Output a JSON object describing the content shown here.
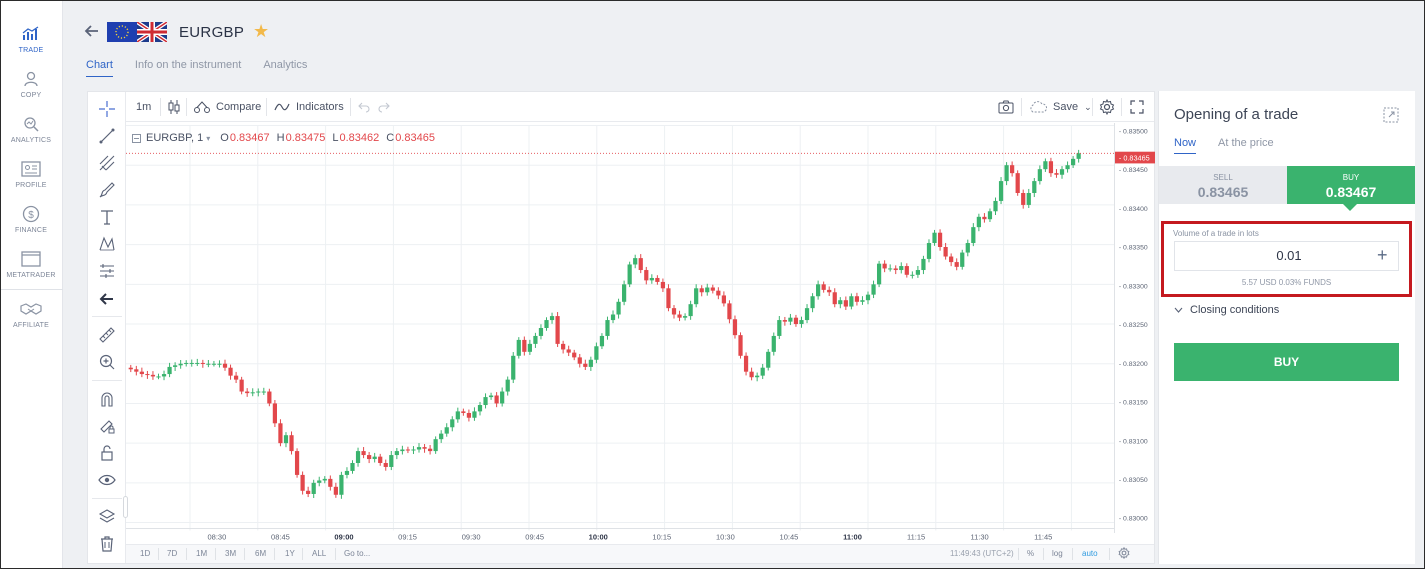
{
  "nav": {
    "items": [
      {
        "label": "TRADE",
        "icon": "trade-chart-icon",
        "active": true
      },
      {
        "label": "COPY",
        "icon": "copy-user-icon"
      },
      {
        "label": "ANALYTICS",
        "icon": "analytics-icon"
      },
      {
        "label": "PROFILE",
        "icon": "profile-card-icon"
      },
      {
        "label": "FINANCE",
        "icon": "dollar-icon"
      },
      {
        "label": "METATRADER",
        "icon": "window-icon"
      },
      {
        "label": "AFFILIATE",
        "icon": "handshake-icon"
      }
    ]
  },
  "header": {
    "symbol": "EURGBP",
    "tabs": [
      {
        "label": "Chart",
        "active": true
      },
      {
        "label": "Info on the instrument"
      },
      {
        "label": "Analytics"
      }
    ]
  },
  "toolbar": {
    "interval": "1m",
    "compare": "Compare",
    "indicators": "Indicators",
    "save": "Save"
  },
  "legend": {
    "symbol": "EURGBP, 1",
    "open_key": "O",
    "open": "0.83467",
    "high_key": "H",
    "high": "0.83475",
    "low_key": "L",
    "low": "0.83462",
    "close_key": "C",
    "close": "0.83465"
  },
  "chart_data": {
    "type": "candlestick",
    "y_ticks": [
      "0.83500",
      "0.83450",
      "0.83400",
      "0.83350",
      "0.83300",
      "0.83250",
      "0.83200",
      "0.83150",
      "0.83100",
      "0.83050",
      "0.83000"
    ],
    "x_ticks": [
      "08:30",
      "08:45",
      "09:00",
      "09:15",
      "09:30",
      "09:45",
      "10:00",
      "10:15",
      "10:30",
      "10:45",
      "11:00",
      "11:15",
      "11:30",
      "11:45"
    ],
    "bold_x_ticks": [
      "09:00",
      "10:00",
      "11:00"
    ],
    "ylim": [
      0.8299,
      0.835
    ],
    "last_price": "0.83465",
    "up_color": "#3ab36e",
    "down_color": "#e2474b",
    "closes": [
      0.83193,
      0.8319,
      0.83187,
      0.83186,
      0.83184,
      0.83184,
      0.83187,
      0.83196,
      0.83198,
      0.832,
      0.83201,
      0.83201,
      0.83201,
      0.832,
      0.832,
      0.832,
      0.832,
      0.83195,
      0.83185,
      0.8318,
      0.83165,
      0.83163,
      0.83164,
      0.83165,
      0.83165,
      0.8315,
      0.83125,
      0.831,
      0.8311,
      0.8309,
      0.8306,
      0.8304,
      0.83036,
      0.8305,
      0.83053,
      0.83055,
      0.83045,
      0.83035,
      0.8306,
      0.83065,
      0.83075,
      0.8309,
      0.83085,
      0.8308,
      0.83083,
      0.83075,
      0.8307,
      0.83085,
      0.8309,
      0.83092,
      0.83091,
      0.83092,
      0.83095,
      0.83093,
      0.8309,
      0.83105,
      0.83112,
      0.8312,
      0.8313,
      0.8314,
      0.83138,
      0.83132,
      0.8314,
      0.83148,
      0.83158,
      0.8316,
      0.8315,
      0.83165,
      0.8318,
      0.8321,
      0.8323,
      0.83215,
      0.83225,
      0.83235,
      0.83245,
      0.83255,
      0.8326,
      0.83225,
      0.83218,
      0.83214,
      0.83208,
      0.832,
      0.83196,
      0.83205,
      0.83222,
      0.83235,
      0.83255,
      0.83262,
      0.83278,
      0.833,
      0.83325,
      0.83333,
      0.83318,
      0.83305,
      0.83308,
      0.83303,
      0.83295,
      0.8327,
      0.83262,
      0.83258,
      0.8326,
      0.83275,
      0.83295,
      0.8329,
      0.83296,
      0.83292,
      0.83286,
      0.83276,
      0.83256,
      0.83236,
      0.8321,
      0.8319,
      0.83183,
      0.83185,
      0.83195,
      0.83215,
      0.83235,
      0.83255,
      0.83253,
      0.83258,
      0.8325,
      0.83255,
      0.8327,
      0.83285,
      0.833,
      0.83293,
      0.8329,
      0.83275,
      0.8328,
      0.83272,
      0.83285,
      0.83278,
      0.8328,
      0.83287,
      0.833,
      0.83326,
      0.8332,
      0.8332,
      0.83318,
      0.83323,
      0.83312,
      0.83312,
      0.83318,
      0.83332,
      0.83352,
      0.83365,
      0.83347,
      0.83335,
      0.83328,
      0.83322,
      0.8334,
      0.83352,
      0.83372,
      0.83385,
      0.83382,
      0.83392,
      0.83405,
      0.8343,
      0.8345,
      0.8344,
      0.83415,
      0.834,
      0.83415,
      0.8343,
      0.83445,
      0.83455,
      0.8344,
      0.83438,
      0.83445,
      0.8345,
      0.83458,
      0.83465
    ]
  },
  "xaxis_bar": {
    "ranges": [
      "1D",
      "7D",
      "1M",
      "3M",
      "6M",
      "1Y",
      "ALL"
    ],
    "goto": "Go to...",
    "time": "11:49:43 (UTC+2)",
    "pct": "%",
    "log": "log",
    "auto": "auto"
  },
  "panel": {
    "title": "Opening of a trade",
    "tabs": [
      "Now",
      "At the price"
    ],
    "sell_label": "SELL",
    "sell_price": "0.83465",
    "buy_label": "BUY",
    "buy_price": "0.83467",
    "volume_label": "Volume of a trade in lots",
    "volume_value": "0.01",
    "volume_info": "5.57 USD  0.03% FUNDS",
    "closing": "Closing conditions",
    "buy_button": "BUY"
  }
}
